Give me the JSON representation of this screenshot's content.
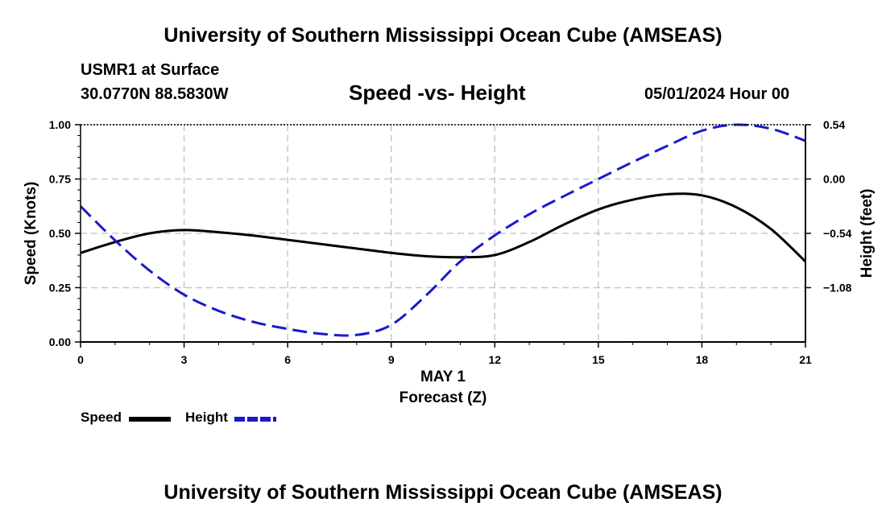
{
  "header": {
    "title": "University of Southern Mississippi Ocean Cube (AMSEAS)",
    "station": "USMR1 at Surface",
    "coords": "30.0770N  88.5830W",
    "subtitle": "Speed -vs- Height",
    "datetime": "05/01/2024 Hour 00"
  },
  "footer": {
    "title": "University of Southern Mississippi Ocean Cube (AMSEAS)"
  },
  "legend": {
    "speed_label": "Speed",
    "height_label": "Height"
  },
  "colors": {
    "speed": "#000000",
    "height": "#1a1acc",
    "grid": "#c8c8c8"
  },
  "chart_data": {
    "type": "line",
    "title": "Speed -vs- Height",
    "xlabel": "Forecast (Z)",
    "xlabel_date": "MAY 1",
    "ylabel": "Speed (Knots)",
    "ylabel_right": "Height (feet)",
    "xlim": [
      0,
      21
    ],
    "ylim": [
      0,
      1
    ],
    "ylim_right": [
      -1.62,
      0.54
    ],
    "x_ticks": [
      0,
      3,
      6,
      9,
      12,
      15,
      18,
      21
    ],
    "x_tick_labels": [
      "0",
      "3",
      "6",
      "9",
      "12",
      "15",
      "18",
      "21"
    ],
    "y_ticks": [
      0,
      0.25,
      0.5,
      0.75,
      1.0
    ],
    "y_tick_labels": [
      "0.00",
      "0.25",
      "0.50",
      "0.75",
      "1.00"
    ],
    "y_right_ticks": [
      -1.08,
      -0.54,
      0.0,
      0.54
    ],
    "y_right_tick_labels": [
      "−1.08",
      "−0.54",
      "0.00",
      "0.54"
    ],
    "grid": true,
    "legend_position": "bottom-left",
    "series": [
      {
        "name": "Speed",
        "axis": "left",
        "style": "solid",
        "x": [
          0,
          1,
          2,
          3,
          4,
          5,
          6,
          7,
          8,
          9,
          10,
          11,
          12,
          13,
          14,
          15,
          16,
          17,
          18,
          19,
          20,
          21
        ],
        "values": [
          0.41,
          0.46,
          0.5,
          0.515,
          0.505,
          0.49,
          0.47,
          0.45,
          0.43,
          0.41,
          0.395,
          0.39,
          0.4,
          0.46,
          0.54,
          0.61,
          0.655,
          0.68,
          0.675,
          0.62,
          0.52,
          0.37
        ]
      },
      {
        "name": "Height",
        "axis": "right",
        "style": "dashed",
        "x": [
          0,
          1,
          2,
          3,
          4,
          5,
          6,
          7,
          8,
          9,
          10,
          11,
          12,
          13,
          14,
          15,
          16,
          17,
          18,
          19,
          20,
          21
        ],
        "values": [
          -0.27,
          -0.61,
          -0.91,
          -1.15,
          -1.31,
          -1.42,
          -1.49,
          -1.54,
          -1.55,
          -1.45,
          -1.16,
          -0.82,
          -0.56,
          -0.35,
          -0.17,
          0.0,
          0.17,
          0.33,
          0.48,
          0.54,
          0.5,
          0.38
        ]
      }
    ]
  }
}
